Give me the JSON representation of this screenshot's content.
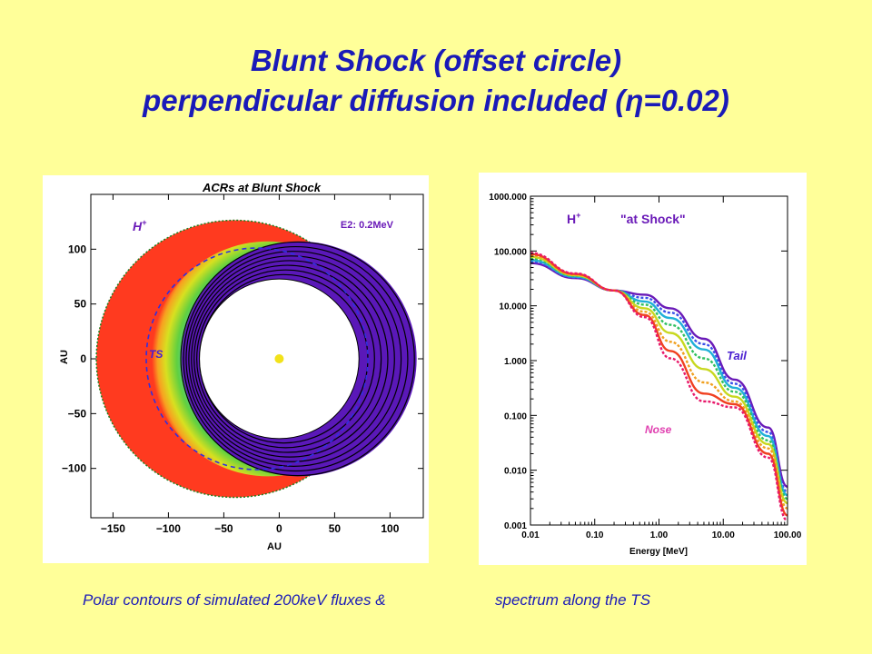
{
  "slide": {
    "title_line1": "Blunt Shock (offset circle)",
    "title_line2": "perpendicular diffusion included (η=0.02)",
    "caption_left": "Polar contours of simulated 200keV fluxes  &",
    "caption_right": "spectrum along the TS"
  },
  "chart_data": [
    {
      "type": "heatmap",
      "title": "ACRs at Blunt Shock",
      "xlabel": "AU",
      "ylabel": "AU",
      "xlim": [
        -170,
        130
      ],
      "ylim": [
        -145,
        150
      ],
      "xticks": [
        -150,
        -100,
        -50,
        0,
        50,
        100
      ],
      "yticks": [
        -100,
        -50,
        0,
        50,
        100
      ],
      "species_label": "H",
      "species_sup": "+",
      "energy_label": "E2: 0.2MeV",
      "ts_label": "TS",
      "outer_boundary": {
        "center": [
          -40,
          0
        ],
        "radius": 125
      },
      "inner_boundary": {
        "center": [
          0,
          0
        ],
        "radius": 72
      },
      "termination_shock": {
        "center": [
          -20,
          0
        ],
        "radius": 100
      },
      "sun_position": [
        0,
        0
      ],
      "contour_rings": 8,
      "colors": {
        "outer": "#ff3a1f",
        "inner": "#5a18b8",
        "ts_line": "#3030e0",
        "sun": "#f2e21a"
      }
    },
    {
      "type": "line",
      "xscale": "log",
      "yscale": "log",
      "xlabel": "Energy [MeV]",
      "ylabel": "",
      "xlim": [
        0.01,
        100
      ],
      "ylim": [
        0.001,
        1000
      ],
      "xtick_labels": [
        "0.01",
        "0.10",
        "1.00",
        "10.00",
        "100.00"
      ],
      "ytick_labels": [
        "1000.000",
        "100.000",
        "10.000",
        "1.000",
        "0.100",
        "0.010",
        "0.001"
      ],
      "species_label": "H",
      "species_sup": "+",
      "label_at_shock": "\"at Shock\"",
      "label_tail": "Tail",
      "label_nose": "Nose",
      "series": [
        {
          "color": "#6a1ab8",
          "points": [
            [
              0.01,
              60
            ],
            [
              0.05,
              32
            ],
            [
              0.2,
              19
            ],
            [
              0.6,
              16
            ],
            [
              1.5,
              9
            ],
            [
              5,
              2.5
            ],
            [
              15,
              0.45
            ],
            [
              50,
              0.06
            ],
            [
              100,
              0.005
            ]
          ]
        },
        {
          "color": "#3a50e8",
          "points": [
            [
              0.01,
              64
            ],
            [
              0.05,
              33
            ],
            [
              0.2,
              19
            ],
            [
              0.6,
              14
            ],
            [
              1.5,
              7.5
            ],
            [
              5,
              2.0
            ],
            [
              15,
              0.38
            ],
            [
              50,
              0.05
            ],
            [
              100,
              0.004
            ]
          ]
        },
        {
          "color": "#20b0d8",
          "points": [
            [
              0.01,
              68
            ],
            [
              0.05,
              34
            ],
            [
              0.2,
              19
            ],
            [
              0.6,
              12
            ],
            [
              1.5,
              6.0
            ],
            [
              5,
              1.6
            ],
            [
              15,
              0.32
            ],
            [
              50,
              0.042
            ],
            [
              100,
              0.0035
            ]
          ]
        },
        {
          "color": "#30c060",
          "points": [
            [
              0.01,
              73
            ],
            [
              0.05,
              35
            ],
            [
              0.2,
              19
            ],
            [
              0.6,
              10.5
            ],
            [
              1.5,
              4.5
            ],
            [
              5,
              1.1
            ],
            [
              15,
              0.27
            ],
            [
              50,
              0.035
            ],
            [
              100,
              0.003
            ]
          ]
        },
        {
          "color": "#c8d820",
          "points": [
            [
              0.01,
              78
            ],
            [
              0.05,
              36
            ],
            [
              0.2,
              19
            ],
            [
              0.6,
              9
            ],
            [
              1.5,
              3.2
            ],
            [
              5,
              0.7
            ],
            [
              15,
              0.22
            ],
            [
              50,
              0.03
            ],
            [
              100,
              0.0025
            ]
          ]
        },
        {
          "color": "#f0a020",
          "points": [
            [
              0.01,
              83
            ],
            [
              0.05,
              37
            ],
            [
              0.2,
              19
            ],
            [
              0.6,
              7.8
            ],
            [
              1.5,
              2.2
            ],
            [
              5,
              0.4
            ],
            [
              15,
              0.18
            ],
            [
              50,
              0.025
            ],
            [
              100,
              0.002
            ]
          ]
        },
        {
          "color": "#f04020",
          "points": [
            [
              0.01,
              88
            ],
            [
              0.05,
              38
            ],
            [
              0.2,
              19
            ],
            [
              0.6,
              6.8
            ],
            [
              1.5,
              1.5
            ],
            [
              5,
              0.25
            ],
            [
              15,
              0.16
            ],
            [
              50,
              0.02
            ],
            [
              100,
              0.0015
            ]
          ]
        },
        {
          "color": "#e8186a",
          "points": [
            [
              0.01,
              92
            ],
            [
              0.05,
              39
            ],
            [
              0.2,
              19
            ],
            [
              0.6,
              6.2
            ],
            [
              1.5,
              1.1
            ],
            [
              5,
              0.18
            ],
            [
              15,
              0.14
            ],
            [
              50,
              0.017
            ],
            [
              100,
              0.0012
            ]
          ]
        }
      ]
    }
  ]
}
